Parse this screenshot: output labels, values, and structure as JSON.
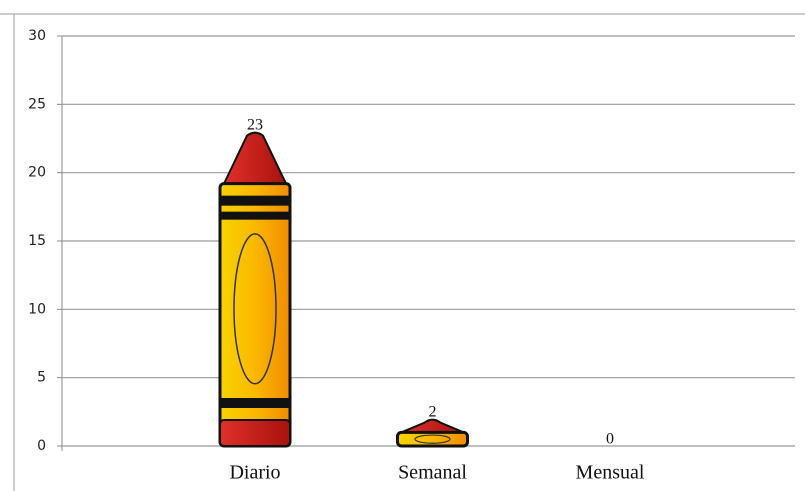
{
  "chart_data": {
    "type": "bar",
    "categories": [
      "Diario",
      "Semanal",
      "Mensual"
    ],
    "values": [
      23,
      2,
      0
    ],
    "color": "#f5c518",
    "ylim": [
      0,
      30
    ],
    "yticks": [
      0,
      5,
      10,
      15,
      20,
      25,
      30
    ],
    "grid": true
  }
}
